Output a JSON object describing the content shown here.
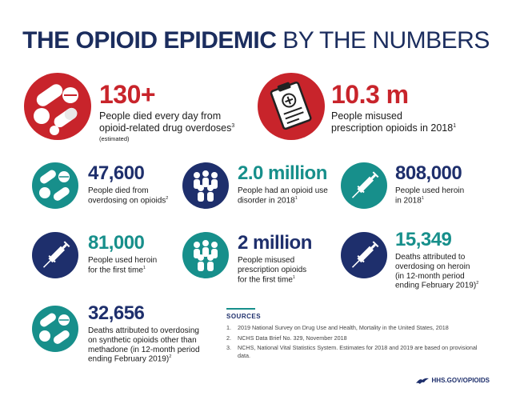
{
  "title": {
    "bold": "THE OPIOID EPIDEMIC",
    "light": "BY THE NUMBERS"
  },
  "colors": {
    "red": "#c8242b",
    "navy": "#1e2f6c",
    "teal": "#178f8b"
  },
  "stats": [
    {
      "value": "130+",
      "line1": "People died every day from",
      "line2": "opioid-related drug overdoses",
      "sup": "3",
      "note": "(estimated)",
      "icon": "pills-icon"
    },
    {
      "value": "10.3 m",
      "line1": "People misused",
      "line2": "prescription opioids in 2018",
      "sup": "1",
      "icon": "prescription-clipboard-icon"
    },
    {
      "value": "47,600",
      "line1": "People died from",
      "line2": "overdosing on opioids",
      "sup": "2",
      "icon": "pills-icon"
    },
    {
      "value": "2.0 million",
      "line1": "People had an opioid use",
      "line2": "disorder in 2018",
      "sup": "1",
      "icon": "people-group-icon"
    },
    {
      "value": "808,000",
      "line1": "People used heroin",
      "line2": "in 2018",
      "sup": "1",
      "icon": "syringe-icon"
    },
    {
      "value": "81,000",
      "line1": "People used heroin",
      "line2": "for the first time",
      "sup": "1",
      "icon": "syringe-icon"
    },
    {
      "value": "2 million",
      "line1": "People misused",
      "line2": "prescription opioids",
      "line3": "for the first time",
      "sup": "1",
      "icon": "people-group-icon"
    },
    {
      "value": "15,349",
      "line1": "Deaths attributed to",
      "line2": "overdosing on heroin",
      "line3": "(in 12-month period",
      "line4": "ending February 2019)",
      "sup": "2",
      "icon": "syringe-icon"
    },
    {
      "value": "32,656",
      "line1": "Deaths attributed to overdosing",
      "line2": "on synthetic opioids other than",
      "line3": "methadone (in 12-month period",
      "line4": "ending February 2019)",
      "sup": "2",
      "icon": "pills-icon"
    }
  ],
  "sources": {
    "heading": "SOURCES",
    "items": [
      {
        "n": "1.",
        "text": "2019 National Survey on Drug Use and Health, Mortality in the United States, 2018"
      },
      {
        "n": "2.",
        "text": "NCHS Data Brief No. 329, November 2018"
      },
      {
        "n": "3.",
        "text": "NCHS, National Vital Statistics System.  Estimates for 2018 and 2019 are based on provisional data."
      }
    ]
  },
  "footer": {
    "text": "HHS.GOV/OPIOIDS",
    "icon": "hhs-eagle-icon"
  }
}
